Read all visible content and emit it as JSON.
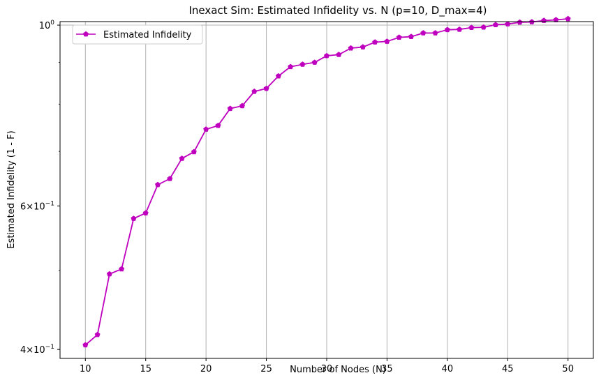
{
  "chart_data": {
    "type": "line",
    "title": "Inexact Sim: Estimated Infidelity vs. N (p=10, D_max=4)",
    "xlabel": "Number of Nodes (N)",
    "ylabel": "Estimated Infidelity (1 - F)",
    "xlim": [
      7.9,
      52.1
    ],
    "ylim": [
      0.39,
      1.01
    ],
    "yscale": "log",
    "grid": "x-major",
    "legend_position": "top-left",
    "x_ticks": [
      10,
      15,
      20,
      25,
      30,
      35,
      40,
      45,
      50
    ],
    "y_ticks": [
      {
        "value": 0.4,
        "base": "4",
        "exp": "−1"
      },
      {
        "value": 0.6,
        "base": "6",
        "exp": "−1"
      },
      {
        "value": 1.0,
        "base": "10",
        "exp": "0"
      }
    ],
    "series": [
      {
        "name": "Estimated Infidelity",
        "color": "#bf00bf",
        "marker": "pentagon",
        "x": [
          10,
          11,
          12,
          13,
          14,
          15,
          16,
          17,
          18,
          19,
          20,
          21,
          22,
          23,
          24,
          25,
          26,
          27,
          28,
          29,
          30,
          31,
          32,
          33,
          34,
          35,
          36,
          37,
          38,
          39,
          40,
          41,
          42,
          43,
          44,
          45,
          46,
          47,
          48,
          49,
          50
        ],
        "values": [
          0.405,
          0.417,
          0.495,
          0.502,
          0.579,
          0.588,
          0.637,
          0.648,
          0.686,
          0.699,
          0.745,
          0.753,
          0.79,
          0.796,
          0.829,
          0.836,
          0.866,
          0.889,
          0.895,
          0.9,
          0.917,
          0.92,
          0.937,
          0.94,
          0.953,
          0.955,
          0.966,
          0.968,
          0.978,
          0.978,
          0.987,
          0.988,
          0.993,
          0.994,
          1.001,
          1.003,
          1.008,
          1.009,
          1.013,
          1.015,
          1.018
        ]
      }
    ]
  }
}
